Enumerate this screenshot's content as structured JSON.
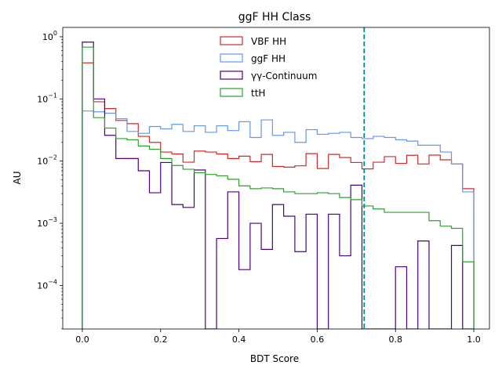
{
  "chart_data": {
    "type": "step-histogram",
    "title": "ggF HH Class",
    "xlabel": "BDT Score",
    "ylabel": "AU",
    "xlim": [
      -0.05,
      1.04
    ],
    "ylim_log10": [
      -4.7,
      0.15
    ],
    "yscale": "log",
    "grid": false,
    "legend_position": "upper center",
    "bin_edges": [
      0.0,
      0.0286,
      0.0571,
      0.0857,
      0.1143,
      0.1429,
      0.1714,
      0.2,
      0.2286,
      0.2571,
      0.2857,
      0.3143,
      0.3429,
      0.3714,
      0.4,
      0.4286,
      0.4571,
      0.4857,
      0.5143,
      0.5429,
      0.5714,
      0.6,
      0.6286,
      0.6571,
      0.6857,
      0.7143,
      0.7429,
      0.7714,
      0.8,
      0.8286,
      0.8571,
      0.8857,
      0.9143,
      0.9429,
      0.9714,
      1.0
    ],
    "xticks": [
      {
        "value": 0.0,
        "label": "0.0"
      },
      {
        "value": 0.2,
        "label": "0.2"
      },
      {
        "value": 0.4,
        "label": "0.4"
      },
      {
        "value": 0.6,
        "label": "0.6"
      },
      {
        "value": 0.8,
        "label": "0.8"
      },
      {
        "value": 1.0,
        "label": "1.0"
      }
    ],
    "yticks": [
      {
        "exp": -4,
        "base": "10",
        "sup": "−4"
      },
      {
        "exp": -3,
        "base": "10",
        "sup": "−3"
      },
      {
        "exp": -2,
        "base": "10",
        "sup": "−2"
      },
      {
        "exp": -1,
        "base": "10",
        "sup": "−1"
      },
      {
        "exp": 0,
        "base": "10",
        "sup": "0"
      }
    ],
    "vline": {
      "x": 0.72,
      "color": "#008b8b",
      "style": "dashed"
    },
    "series": [
      {
        "name": "VBF HH",
        "color": "#d62728",
        "values": [
          0.38,
          0.09,
          0.07,
          0.045,
          0.04,
          0.025,
          0.02,
          0.014,
          0.013,
          0.0096,
          0.0145,
          0.014,
          0.013,
          0.011,
          0.012,
          0.0098,
          0.0128,
          0.0082,
          0.008,
          0.0084,
          0.0132,
          0.0076,
          0.0128,
          0.0114,
          0.0095,
          0.0075,
          0.0096,
          0.0118,
          0.0092,
          0.0124,
          0.009,
          0.0125,
          0.0105,
          0.009,
          0.0036
        ]
      },
      {
        "name": "ggF HH",
        "color": "#6495ed",
        "values": [
          0.064,
          0.062,
          0.059,
          0.048,
          0.03,
          0.028,
          0.036,
          0.033,
          0.039,
          0.03,
          0.037,
          0.029,
          0.037,
          0.031,
          0.043,
          0.024,
          0.046,
          0.026,
          0.029,
          0.02,
          0.032,
          0.027,
          0.028,
          0.029,
          0.024,
          0.023,
          0.025,
          0.024,
          0.022,
          0.021,
          0.018,
          0.018,
          0.014,
          0.009,
          0.0032
        ]
      },
      {
        "name": "γγ-Continuum",
        "color": "#4b0082",
        "values": [
          0.82,
          0.1,
          0.026,
          0.011,
          0.011,
          0.007,
          0.0031,
          0.0095,
          0.002,
          0.0018,
          0.0072,
          2e-05,
          0.00057,
          0.0032,
          0.00018,
          0.001,
          0.00038,
          0.002,
          0.0013,
          0.00035,
          0.0014,
          2e-05,
          0.0014,
          0.0003,
          0.0041,
          2e-05,
          2e-05,
          2e-05,
          0.0002,
          2e-05,
          0.00052,
          2e-05,
          2e-05,
          0.00044,
          2e-05
        ]
      },
      {
        "name": "ttH",
        "color": "#2ca02c",
        "values": [
          0.68,
          0.05,
          0.034,
          0.023,
          0.022,
          0.0175,
          0.0155,
          0.011,
          0.0085,
          0.0074,
          0.0065,
          0.0061,
          0.0058,
          0.0051,
          0.004,
          0.0036,
          0.0037,
          0.0036,
          0.0032,
          0.003,
          0.003,
          0.0031,
          0.003,
          0.0026,
          0.0024,
          0.0019,
          0.0017,
          0.0015,
          0.0015,
          0.0015,
          0.0015,
          0.0011,
          0.0009,
          0.00083,
          0.00024
        ]
      }
    ]
  }
}
